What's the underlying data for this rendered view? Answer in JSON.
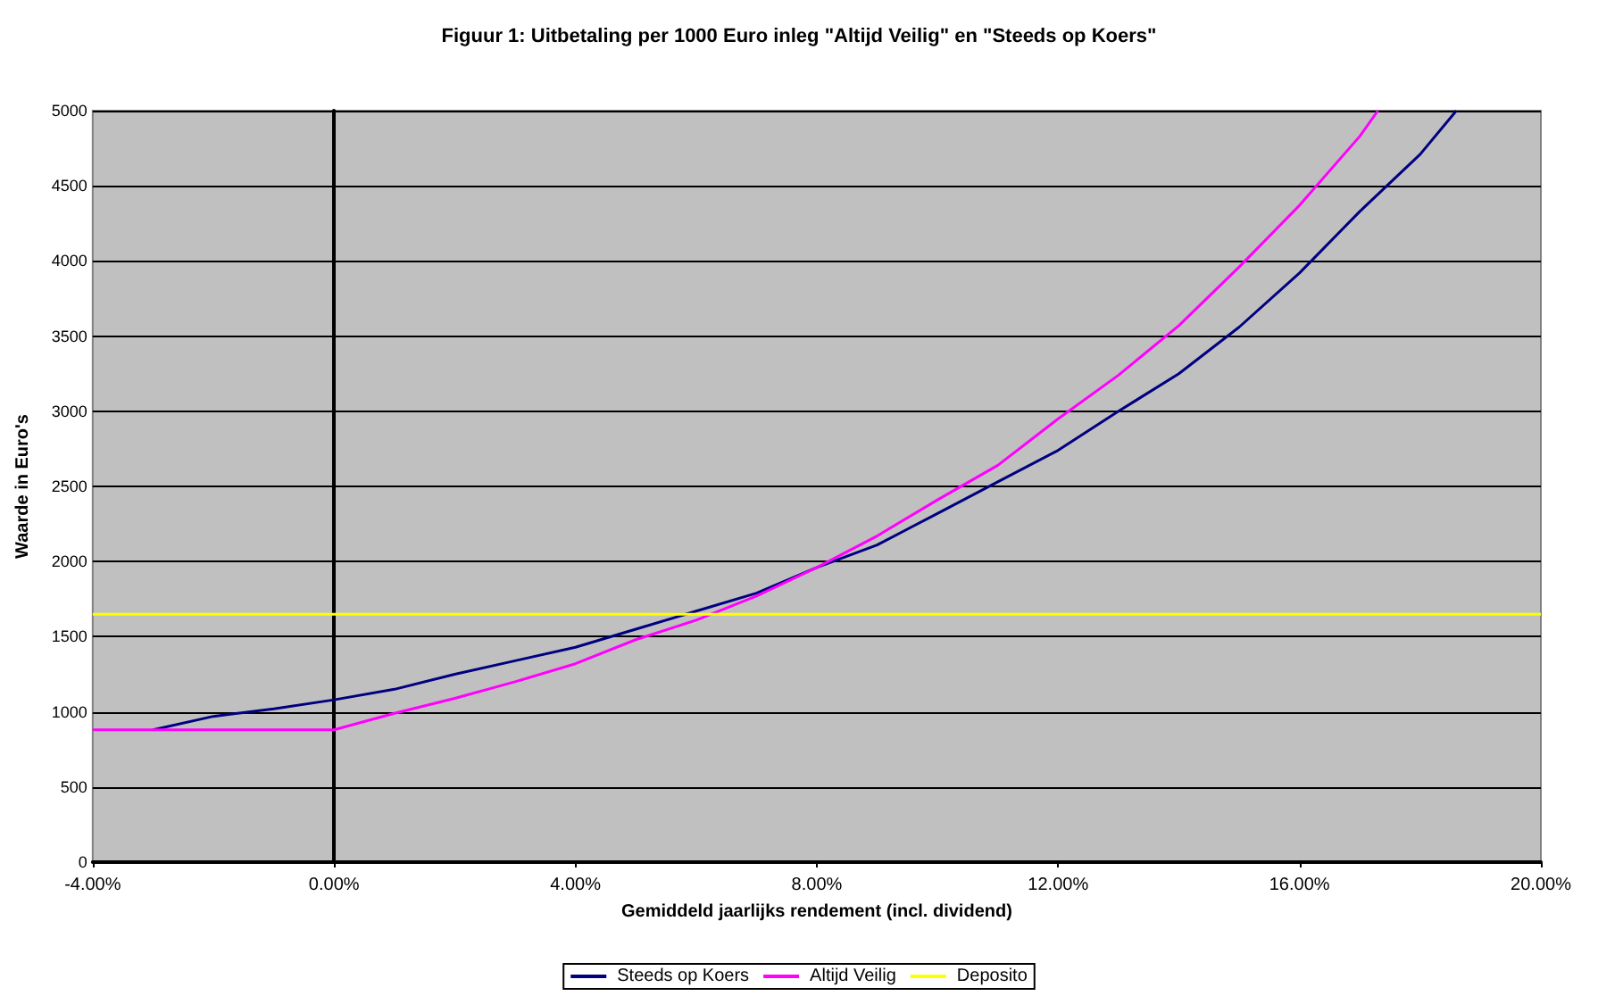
{
  "chart_data": {
    "type": "line",
    "title": "Figuur 1: Uitbetaling per 1000 Euro inleg \"Altijd Veilig\" en \"Steeds op Koers\"",
    "xlabel": "Gemiddeld jaarlijks rendement (incl. dividend)",
    "ylabel": "Waarde in Euro's",
    "xlim": [
      -4,
      20
    ],
    "xticks": [
      {
        "value": -4,
        "label": "-4.00%"
      },
      {
        "value": 0,
        "label": "0.00%"
      },
      {
        "value": 4,
        "label": "4.00%"
      },
      {
        "value": 8,
        "label": "8.00%"
      },
      {
        "value": 12,
        "label": "12.00%"
      },
      {
        "value": 16,
        "label": "16.00%"
      },
      {
        "value": 20,
        "label": "20.00%"
      }
    ],
    "ylim": [
      0,
      5000
    ],
    "yticks": [
      0,
      500,
      1000,
      1500,
      2000,
      2500,
      3000,
      3500,
      4000,
      4500,
      5000
    ],
    "series": [
      {
        "name": "Steeds op Koers",
        "color": "#000080",
        "x": [
          -3,
          -2,
          -1,
          0,
          1,
          2,
          3,
          4,
          5,
          6,
          7,
          8,
          9,
          10,
          11,
          12,
          13,
          14,
          15,
          16,
          17,
          18,
          18.6
        ],
        "values": [
          880,
          970,
          1020,
          1080,
          1150,
          1250,
          1340,
          1430,
          1550,
          1670,
          1790,
          1960,
          2110,
          2320,
          2530,
          2740,
          3000,
          3250,
          3560,
          3920,
          4330,
          4710,
          5000
        ]
      },
      {
        "name": "Altijd Veilig",
        "color": "#ff00ff",
        "x": [
          -4,
          -3,
          -2,
          -1,
          0,
          1,
          2,
          3,
          4,
          5,
          6,
          7,
          8,
          9,
          10,
          11,
          12,
          13,
          14,
          15,
          16,
          17,
          17.3
        ],
        "values": [
          880,
          880,
          880,
          880,
          880,
          990,
          1090,
          1200,
          1320,
          1480,
          1610,
          1770,
          1960,
          2170,
          2410,
          2640,
          2950,
          3240,
          3570,
          3960,
          4370,
          4830,
          5000
        ]
      },
      {
        "name": "Deposito",
        "color": "#ffff00",
        "x": [
          -4,
          20
        ],
        "values": [
          1650,
          1650
        ]
      }
    ],
    "grid": "y",
    "legend": "bottom",
    "marker": "none",
    "line_style": "solid"
  }
}
